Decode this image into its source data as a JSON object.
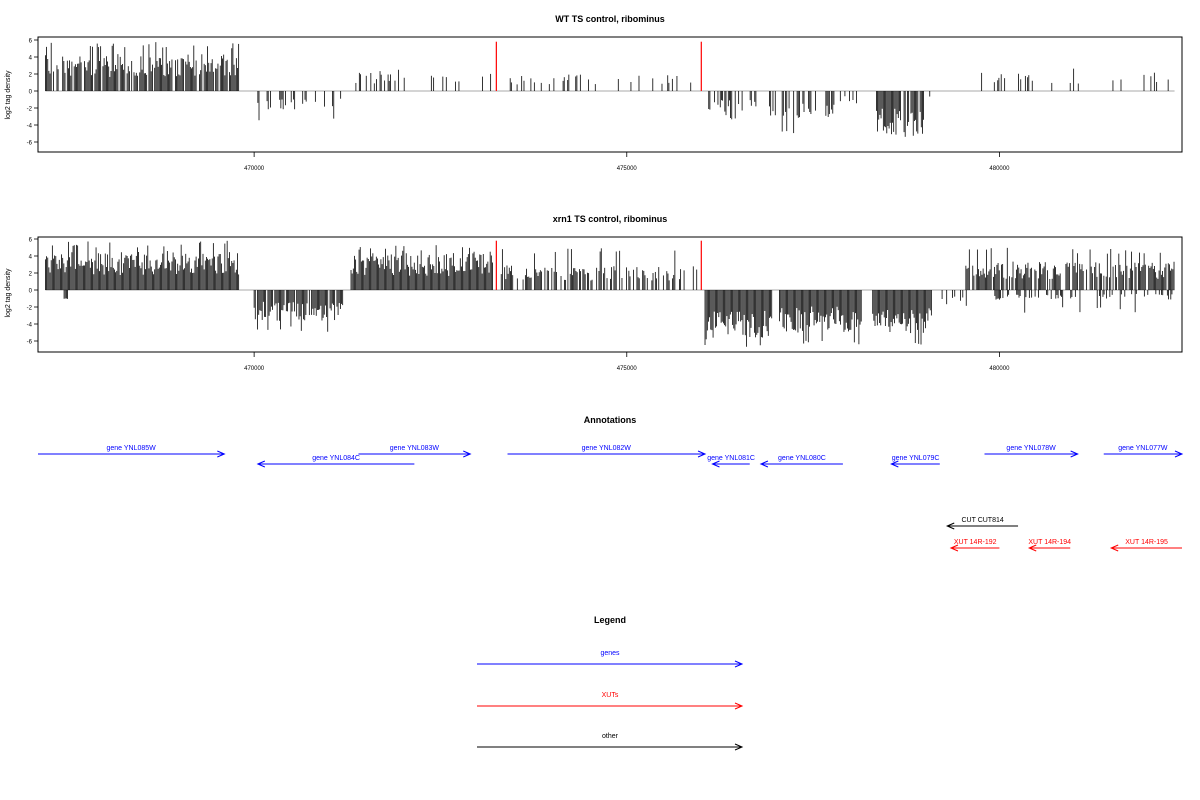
{
  "chart_data": [
    {
      "type": "bar",
      "title": "WT TS control, ribominus",
      "xlabel": "",
      "ylabel": "log2 tag density",
      "xlim": [
        467100,
        482450
      ],
      "ylim": [
        -7,
        6.5
      ],
      "x_ticks": [
        470000,
        475000,
        480000
      ],
      "x_tick_labels": [
        "470000",
        "475000",
        "480000"
      ],
      "y_ticks": [
        -6,
        -4,
        -2,
        0,
        2,
        4,
        6
      ],
      "y_tick_labels": [
        "-6",
        "-4",
        "-2",
        "0",
        "2",
        "4",
        "6"
      ],
      "grid": false,
      "baseline_color": "#a8a8a8",
      "bar_color": "#000000",
      "marker_color": "#ff0000",
      "markers": [
        {
          "x": 473250,
          "y_bottom": 0,
          "y_top": 5.8
        },
        {
          "x": 476000,
          "y_bottom": 0,
          "y_top": 5.8
        }
      ],
      "series": [
        {
          "strand": "plus",
          "segments": [
            {
              "x_start": 467200,
              "x_end": 469800,
              "density": 0.85,
              "y_min": 1.2,
              "y_max": 5.8,
              "typical": 3.0
            },
            {
              "x_start": 471350,
              "x_end": 472050,
              "density": 0.35,
              "y_min": 0.5,
              "y_max": 2.7,
              "typical": 1.5
            },
            {
              "x_start": 472100,
              "x_end": 472950,
              "density": 0.15,
              "y_min": 0.5,
              "y_max": 2.5,
              "typical": 1.3
            },
            {
              "x_start": 473050,
              "x_end": 475980,
              "density": 0.15,
              "y_min": 0.5,
              "y_max": 3.5,
              "typical": 1.4
            },
            {
              "x_start": 479700,
              "x_end": 481300,
              "density": 0.18,
              "y_min": 0.5,
              "y_max": 3.0,
              "typical": 1.6
            },
            {
              "x_start": 481400,
              "x_end": 482300,
              "density": 0.12,
              "y_min": 0.5,
              "y_max": 2.9,
              "typical": 1.4
            }
          ]
        },
        {
          "strand": "minus",
          "segments": [
            {
              "x_start": 470050,
              "x_end": 471200,
              "density": 0.35,
              "y_min": -3.5,
              "y_max": -0.5,
              "typical": -1.5
            },
            {
              "x_start": 476100,
              "x_end": 476800,
              "density": 0.45,
              "y_min": -3.5,
              "y_max": -0.5,
              "typical": -1.8
            },
            {
              "x_start": 476900,
              "x_end": 477800,
              "density": 0.4,
              "y_min": -5.3,
              "y_max": -0.5,
              "typical": -2.2
            },
            {
              "x_start": 477850,
              "x_end": 478150,
              "density": 0.2,
              "y_min": -2.0,
              "y_max": -0.5,
              "typical": -1.0
            },
            {
              "x_start": 478350,
              "x_end": 479000,
              "density": 0.9,
              "y_min": -5.5,
              "y_max": -1.0,
              "typical": -3.8
            },
            {
              "x_start": 479050,
              "x_end": 479200,
              "density": 0.2,
              "y_min": -2.0,
              "y_max": -0.5,
              "typical": -1.0
            }
          ]
        }
      ]
    },
    {
      "type": "bar",
      "title": "xrn1 TS control, ribominus",
      "xlabel": "",
      "ylabel": "log2 tag density",
      "xlim": [
        467100,
        482450
      ],
      "ylim": [
        -7,
        6.5
      ],
      "x_ticks": [
        470000,
        475000,
        480000
      ],
      "x_tick_labels": [
        "470000",
        "475000",
        "480000"
      ],
      "y_ticks": [
        -6,
        -4,
        -2,
        0,
        2,
        4,
        6
      ],
      "y_tick_labels": [
        "-6",
        "-4",
        "-2",
        "0",
        "2",
        "4",
        "6"
      ],
      "grid": false,
      "baseline_color": "#a8a8a8",
      "bar_color": "#000000",
      "marker_color": "#ff0000",
      "markers": [
        {
          "x": 473250,
          "y_bottom": 0,
          "y_top": 5.8
        },
        {
          "x": 476000,
          "y_bottom": 0,
          "y_top": 5.8
        }
      ],
      "series": [
        {
          "strand": "plus",
          "segments": [
            {
              "x_start": 467200,
              "x_end": 469800,
              "density": 1.0,
              "y_min": 1.5,
              "y_max": 5.8,
              "typical": 3.2
            },
            {
              "x_start": 471300,
              "x_end": 473200,
              "density": 1.0,
              "y_min": 1.2,
              "y_max": 5.3,
              "typical": 3.0
            },
            {
              "x_start": 473300,
              "x_end": 475950,
              "density": 0.6,
              "y_min": 0.5,
              "y_max": 5.0,
              "typical": 2.0
            },
            {
              "x_start": 479550,
              "x_end": 482350,
              "density": 0.8,
              "y_min": 0.5,
              "y_max": 5.0,
              "typical": 2.3
            }
          ]
        },
        {
          "strand": "minus",
          "segments": [
            {
              "x_start": 467450,
              "x_end": 467500,
              "density": 1.0,
              "y_min": -1.3,
              "y_max": -1.0,
              "typical": -1.2
            },
            {
              "x_start": 470000,
              "x_end": 471200,
              "density": 0.9,
              "y_min": -5.0,
              "y_max": -1.0,
              "typical": -2.5
            },
            {
              "x_start": 476050,
              "x_end": 476950,
              "density": 1.0,
              "y_min": -6.7,
              "y_max": -1.5,
              "typical": -4.0
            },
            {
              "x_start": 477050,
              "x_end": 478150,
              "density": 1.0,
              "y_min": -6.5,
              "y_max": -1.5,
              "typical": -3.5
            },
            {
              "x_start": 478300,
              "x_end": 479100,
              "density": 1.0,
              "y_min": -6.5,
              "y_max": -1.5,
              "typical": -3.8
            },
            {
              "x_start": 479200,
              "x_end": 479700,
              "density": 0.3,
              "y_min": -2.5,
              "y_max": -0.5,
              "typical": -1.2
            },
            {
              "x_start": 479800,
              "x_end": 482350,
              "density": 0.3,
              "y_min": -2.8,
              "y_max": -0.3,
              "typical": -0.8
            }
          ]
        }
      ]
    }
  ],
  "annotations": {
    "title": "Annotations",
    "features": [
      {
        "label": "gene YNL085W",
        "category": "genes",
        "x_start": 467100,
        "x_end": 469600,
        "row": 1
      },
      {
        "label": "gene YNL084C",
        "category": "genes",
        "x_start": 472150,
        "x_end": 470050,
        "row": 2
      },
      {
        "label": "gene YNL083W",
        "category": "genes",
        "x_start": 471400,
        "x_end": 472900,
        "row": 1
      },
      {
        "label": "gene YNL082W",
        "category": "genes",
        "x_start": 473400,
        "x_end": 476050,
        "row": 1
      },
      {
        "label": "gene YNL081C",
        "category": "genes",
        "x_start": 476650,
        "x_end": 476150,
        "row": 2
      },
      {
        "label": "gene YNL080C",
        "category": "genes",
        "x_start": 477900,
        "x_end": 476800,
        "row": 2
      },
      {
        "label": "gene YNL079C",
        "category": "genes",
        "x_start": 479200,
        "x_end": 478550,
        "row": 2
      },
      {
        "label": "gene YNL078W",
        "category": "genes",
        "x_start": 479800,
        "x_end": 481050,
        "row": 1
      },
      {
        "label": "gene YNL077W",
        "category": "genes",
        "x_start": 481400,
        "x_end": 482450,
        "row": 1
      },
      {
        "label": "CUT CUT814",
        "category": "other",
        "x_start": 480250,
        "x_end": 479300,
        "row": 3
      },
      {
        "label": "XUT 14R-192",
        "category": "XUTs",
        "x_start": 480000,
        "x_end": 479350,
        "row": 4
      },
      {
        "label": "XUT 14R-194",
        "category": "XUTs",
        "x_start": 480950,
        "x_end": 480400,
        "row": 4
      },
      {
        "label": "XUT 14R-195",
        "category": "XUTs",
        "x_start": 482450,
        "x_end": 481500,
        "row": 4
      }
    ]
  },
  "legend": {
    "title": "Legend",
    "items": [
      {
        "label": "genes",
        "color": "#0000ff"
      },
      {
        "label": "XUTs",
        "color": "#ff0000"
      },
      {
        "label": "other",
        "color": "#000000"
      }
    ]
  }
}
